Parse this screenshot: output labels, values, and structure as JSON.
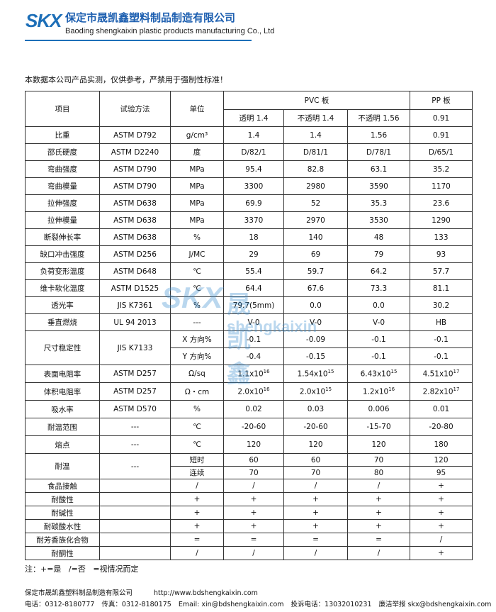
{
  "header": {
    "logo": "SKX",
    "company": "保定市晟凯鑫塑料制品制造有限公司",
    "company_en": "Baoding shengkaixin plastic products manufacturing Co., Ltd"
  },
  "intro": "本数据本公司产品实测，仅供参考，严禁用于强制性标准！",
  "table": {
    "head": {
      "item": "项目",
      "method": "试验方法",
      "unit": "单位",
      "groups": [
        "PVC 板",
        "PP 板"
      ],
      "sub": [
        "透明 1.4",
        "不透明 1.4",
        "不透明 1.56",
        "0.91"
      ]
    },
    "rows": [
      {
        "item": "比重",
        "method": "ASTM D792",
        "unit": "g/cm³",
        "values": [
          "1.4",
          "1.4",
          "1.56",
          "0.91"
        ]
      },
      {
        "item": "邵氏硬度",
        "method": "ASTM D2240",
        "unit": "度",
        "values": [
          "D/82/1",
          "D/81/1",
          "D/78/1",
          "D/65/1"
        ]
      },
      {
        "item": "弯曲强度",
        "method": "ASTM D790",
        "unit": "MPa",
        "values": [
          "95.4",
          "82.8",
          "63.1",
          "35.2"
        ]
      },
      {
        "item": "弯曲模量",
        "method": "ASTM D790",
        "unit": "MPa",
        "values": [
          "3300",
          "2980",
          "3590",
          "1170"
        ]
      },
      {
        "item": "拉伸强度",
        "method": "ASTM D638",
        "unit": "MPa",
        "values": [
          "69.9",
          "52",
          "35.3",
          "23.6"
        ]
      },
      {
        "item": "拉伸模量",
        "method": "ASTM D638",
        "unit": "MPa",
        "values": [
          "3370",
          "2970",
          "3530",
          "1290"
        ]
      },
      {
        "item": "断裂伸长率",
        "method": "ASTM D638",
        "unit": "%",
        "values": [
          "18",
          "140",
          "48",
          "133"
        ]
      },
      {
        "item": "缺口冲击强度",
        "method": "ASTM D256",
        "unit": "J/MC",
        "values": [
          "29",
          "69",
          "79",
          "93"
        ]
      },
      {
        "item": "负荷变形温度",
        "method": "ASTM D648",
        "unit": "℃",
        "values": [
          "55.4",
          "59.7",
          "64.2",
          "57.7"
        ]
      },
      {
        "item": "维卡软化温度",
        "method": "ASTM D1525",
        "unit": "℃",
        "values": [
          "64.4",
          "67.6",
          "73.3",
          "81.1"
        ]
      },
      {
        "item": "透光率",
        "method": "JIS K7361",
        "unit": "%",
        "values": [
          "79.7(5mm)",
          "0.0",
          "0.0",
          "30.2"
        ]
      },
      {
        "item": "垂直燃烧",
        "method": "UL 94 2013",
        "unit": "---",
        "values": [
          "V-0",
          "V-0",
          "V-0",
          "HB"
        ]
      },
      {
        "item": "尺寸稳定性",
        "method": "JIS K7133",
        "subrows": [
          {
            "unit": "X 方向%",
            "values": [
              "-0.1",
              "-0.09",
              "-0.1",
              "-0.1"
            ]
          },
          {
            "unit": "Y 方向%",
            "values": [
              "-0.4",
              "-0.15",
              "-0.1",
              "-0.1"
            ]
          }
        ]
      },
      {
        "item": "表面电阻率",
        "method": "ASTM D257",
        "unit": "Ω/sq",
        "values": [
          {
            "base": "1.1x10",
            "exp": "16"
          },
          {
            "base": "1.54x10",
            "exp": "15"
          },
          {
            "base": "6.43x10",
            "exp": "15"
          },
          {
            "base": "4.51x10",
            "exp": "17"
          }
        ]
      },
      {
        "item": "体积电阻率",
        "method": "ASTM D257",
        "unit": "Ω・cm",
        "values": [
          {
            "base": "2.0x10",
            "exp": "16"
          },
          {
            "base": "2.0x10",
            "exp": "15"
          },
          {
            "base": "1.2x10",
            "exp": "16"
          },
          {
            "base": "2.82x10",
            "exp": "17"
          }
        ]
      },
      {
        "item": "吸水率",
        "method": "ASTM D570",
        "unit": "%",
        "values": [
          "0.02",
          "0.03",
          "0.006",
          "0.01"
        ]
      },
      {
        "item": "耐温范围",
        "method": "---",
        "unit": "℃",
        "values": [
          "-20-60",
          "-20-60",
          "-15-70",
          "-20-80"
        ]
      },
      {
        "item": "熔点",
        "method": "---",
        "unit": "℃",
        "values": [
          "120",
          "120",
          "120",
          "180"
        ]
      },
      {
        "item": "耐温",
        "method": "---",
        "subrows": [
          {
            "unit": "短时",
            "values": [
              "60",
              "60",
              "70",
              "120"
            ]
          },
          {
            "unit": "连续",
            "values": [
              "70",
              "70",
              "80",
              "95"
            ]
          }
        ]
      },
      {
        "item": "食品接触",
        "unit": "/",
        "values": [
          "/",
          "/",
          "/",
          "+"
        ]
      },
      {
        "item": "耐酸性",
        "unit": "+",
        "values": [
          "+",
          "+",
          "+",
          "+"
        ]
      },
      {
        "item": "耐碱性",
        "unit": "+",
        "values": [
          "+",
          "+",
          "+",
          "+"
        ]
      },
      {
        "item": "耐碳酸水性",
        "unit": "+",
        "values": [
          "+",
          "+",
          "+",
          "+"
        ]
      },
      {
        "item": "耐芳香族化合物",
        "unit": "=",
        "values": [
          "=",
          "=",
          "=",
          "/"
        ]
      },
      {
        "item": "耐酮性",
        "unit": "/",
        "values": [
          "/",
          "/",
          "/",
          "+"
        ]
      }
    ]
  },
  "note": "注：+=是   /=否   =视情况而定",
  "watermark": {
    "logo": "SKX",
    "name": "晟凯鑫",
    "domain": "shengkaixin"
  },
  "footer": {
    "company": "保定市晟凯鑫塑料制品制造有限公司",
    "url": "http://www.bdshengkaixin.com",
    "contacts": [
      "电话：0312-8180777",
      "传真：0312-8180175",
      "Email: xin@bdshengkaixin.com",
      "投诉电话：13032010231",
      "廉洁举报 skx@bdshengkaixin.com"
    ]
  }
}
